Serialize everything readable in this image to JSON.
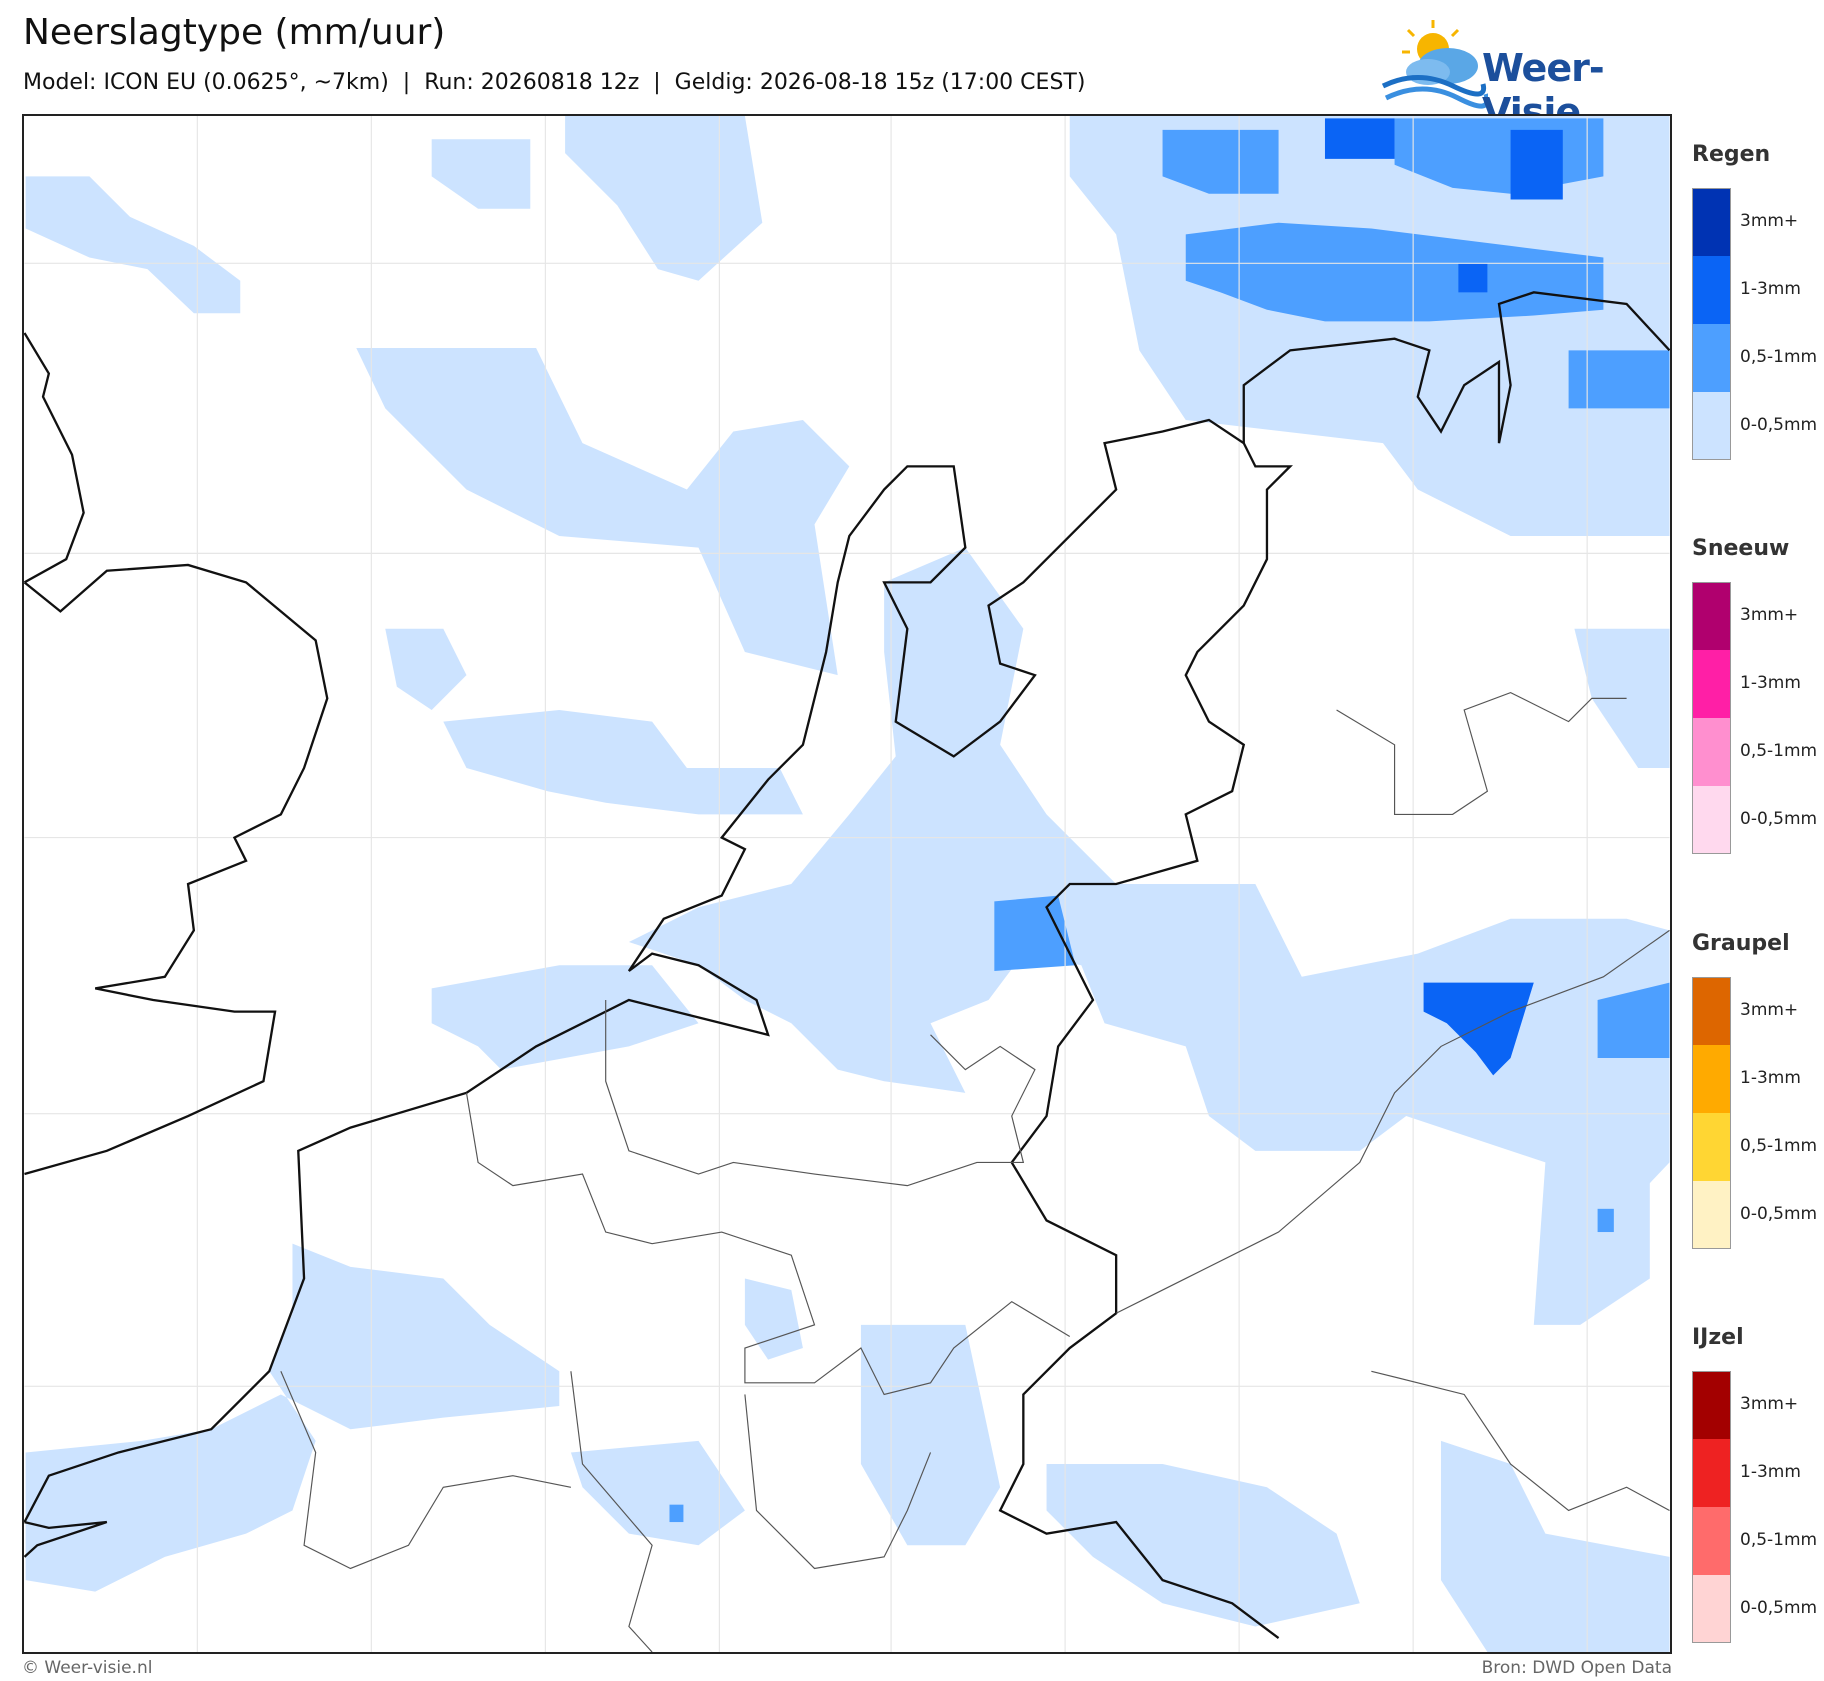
{
  "header": {
    "title": "Neerslagtype (mm/uur)",
    "subtitle": "Model: ICON EU (0.0625°, ~7km)  |  Run: 20260818 12z  |  Geldig: 2026-08-18 15z (17:00 CEST)"
  },
  "logo": {
    "text": "Weer-Visie"
  },
  "legend": [
    {
      "title": "Regen",
      "items": [
        {
          "label": "3mm+",
          "color": "#0033b3"
        },
        {
          "label": "1-3mm",
          "color": "#0a64f5"
        },
        {
          "label": "0,5-1mm",
          "color": "#4d9fff"
        },
        {
          "label": "0-0,5mm",
          "color": "#cce3ff"
        }
      ]
    },
    {
      "title": "Sneeuw",
      "items": [
        {
          "label": "3mm+",
          "color": "#b0006e"
        },
        {
          "label": "1-3mm",
          "color": "#ff1fa6"
        },
        {
          "label": "0,5-1mm",
          "color": "#ff8fcf"
        },
        {
          "label": "0-0,5mm",
          "color": "#ffd9ee"
        }
      ]
    },
    {
      "title": "Graupel",
      "items": [
        {
          "label": "3mm+",
          "color": "#dd6600"
        },
        {
          "label": "1-3mm",
          "color": "#ffaa00"
        },
        {
          "label": "0,5-1mm",
          "color": "#ffd633"
        },
        {
          "label": "0-0,5mm",
          "color": "#fff2c4"
        }
      ]
    },
    {
      "title": "IJzel",
      "items": [
        {
          "label": "3mm+",
          "color": "#a30000"
        },
        {
          "label": "1-3mm",
          "color": "#ee2222"
        },
        {
          "label": "0,5-1mm",
          "color": "#ff6b6b"
        },
        {
          "label": "0-0,5mm",
          "color": "#ffd4d4"
        }
      ]
    }
  ],
  "footer": {
    "left": "© Weer-visie.nl",
    "right": "Bron: DWD Open Data"
  }
}
